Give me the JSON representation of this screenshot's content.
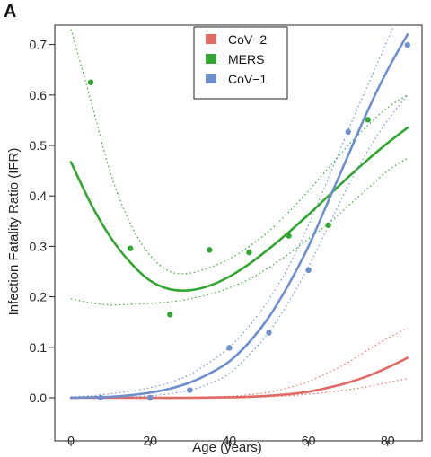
{
  "panel_label": "A",
  "chart_data": {
    "type": "scatter",
    "title": "",
    "xlabel": "Age (years)",
    "ylabel": "Infection Fatality Ratio (IFR)",
    "xlim": [
      -3,
      88
    ],
    "ylim": [
      -0.015,
      0.73
    ],
    "x_ticks": [
      0,
      20,
      40,
      60,
      80
    ],
    "y_ticks": [
      0.0,
      0.1,
      0.2,
      0.3,
      0.4,
      0.5,
      0.6,
      0.7
    ],
    "x_tick_labels": [
      "0",
      "20",
      "40",
      "60",
      "80"
    ],
    "y_tick_labels": [
      "0.0",
      "0.1",
      "0.2",
      "0.3",
      "0.4",
      "0.5",
      "0.6",
      "0.7"
    ],
    "grid": false,
    "legend_position": "top-center",
    "series": [
      {
        "name": "CoV−2",
        "color": "#e06a64",
        "points": [],
        "fit_x": [
          0,
          10,
          20,
          30,
          40,
          45,
          50,
          55,
          60,
          65,
          70,
          75,
          80,
          85
        ],
        "fit_y": [
          0,
          0,
          0,
          0,
          0.001,
          0.002,
          0.004,
          0.007,
          0.012,
          0.02,
          0.03,
          0.043,
          0.06,
          0.079
        ],
        "ci_lower": [
          0,
          0,
          0,
          0,
          0,
          0.001,
          0.002,
          0.004,
          0.007,
          0.011,
          0.016,
          0.022,
          0.03,
          0.038
        ],
        "ci_upper": [
          0,
          0,
          0,
          0.001,
          0.003,
          0.006,
          0.011,
          0.02,
          0.032,
          0.05,
          0.07,
          0.095,
          0.118,
          0.138
        ]
      },
      {
        "name": "MERS",
        "color": "#33a532",
        "points": [
          [
            5,
            0.625
          ],
          [
            15,
            0.296
          ],
          [
            25,
            0.165
          ],
          [
            35,
            0.293
          ],
          [
            45,
            0.288
          ],
          [
            55,
            0.321
          ],
          [
            65,
            0.342
          ],
          [
            75,
            0.551
          ]
        ],
        "fit_x": [
          0,
          5,
          10,
          15,
          20,
          25,
          30,
          35,
          40,
          45,
          50,
          55,
          60,
          65,
          70,
          75,
          80,
          85
        ],
        "fit_y": [
          0.467,
          0.385,
          0.318,
          0.268,
          0.232,
          0.215,
          0.213,
          0.222,
          0.24,
          0.265,
          0.295,
          0.328,
          0.363,
          0.4,
          0.437,
          0.472,
          0.505,
          0.535
        ],
        "ci_lower": [
          0.196,
          0.188,
          0.184,
          0.185,
          0.187,
          0.19,
          0.196,
          0.205,
          0.218,
          0.235,
          0.258,
          0.285,
          0.315,
          0.345,
          0.38,
          0.415,
          0.45,
          0.475
        ],
        "ci_upper": [
          0.73,
          0.59,
          0.445,
          0.345,
          0.282,
          0.25,
          0.247,
          0.258,
          0.275,
          0.3,
          0.33,
          0.368,
          0.41,
          0.455,
          0.5,
          0.54,
          0.575,
          0.6
        ]
      },
      {
        "name": "CoV−1",
        "color": "#6e8fcb",
        "points": [
          [
            7.5,
            0.0
          ],
          [
            20,
            0.0
          ],
          [
            30,
            0.015
          ],
          [
            40,
            0.099
          ],
          [
            50,
            0.129
          ],
          [
            60,
            0.253
          ],
          [
            70,
            0.527
          ],
          [
            85,
            0.699
          ]
        ],
        "fit_x": [
          0,
          5,
          10,
          15,
          20,
          25,
          30,
          35,
          40,
          45,
          50,
          55,
          60,
          65,
          70,
          75,
          80,
          85
        ],
        "fit_y": [
          0.0,
          0.001,
          0.002,
          0.005,
          0.01,
          0.018,
          0.03,
          0.048,
          0.072,
          0.11,
          0.16,
          0.225,
          0.3,
          0.39,
          0.48,
          0.57,
          0.65,
          0.72
        ],
        "ci_lower": [
          0.0,
          0.0,
          0.001,
          0.002,
          0.004,
          0.008,
          0.015,
          0.028,
          0.048,
          0.085,
          0.13,
          0.19,
          0.26,
          0.34,
          0.42,
          0.49,
          0.55,
          0.6
        ],
        "ci_upper": [
          0.002,
          0.004,
          0.008,
          0.013,
          0.02,
          0.03,
          0.046,
          0.07,
          0.1,
          0.142,
          0.195,
          0.26,
          0.342,
          0.435,
          0.53,
          0.62,
          0.71,
          0.8
        ]
      }
    ]
  }
}
